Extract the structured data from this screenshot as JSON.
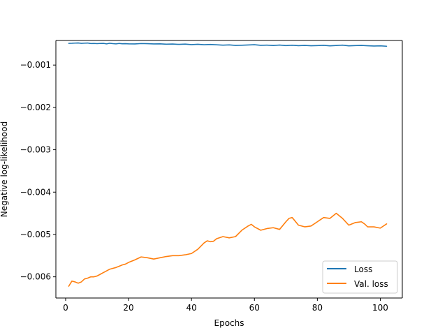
{
  "chart_data": {
    "type": "line",
    "title": "",
    "xlabel": "Epochs",
    "ylabel": "Negative log-likelihood",
    "xlim": [
      -3.1,
      107
    ],
    "ylim": [
      -0.0065,
      -0.00042
    ],
    "xticks": [
      0,
      20,
      40,
      60,
      80,
      100
    ],
    "xtick_labels": [
      "0",
      "20",
      "40",
      "60",
      "80",
      "100"
    ],
    "yticks": [
      -0.006,
      -0.005,
      -0.004,
      -0.003,
      -0.002,
      -0.001
    ],
    "ytick_labels": [
      "−0.006",
      "−0.005",
      "−0.004",
      "−0.003",
      "−0.002",
      "−0.001"
    ],
    "grid": false,
    "legend": {
      "location": "lower-right",
      "entries": [
        "Loss",
        "Val. loss"
      ]
    },
    "series": [
      {
        "name": "Loss",
        "color": "#1f77b4",
        "x": [
          1,
          2,
          3,
          4,
          5,
          6,
          7,
          8,
          9,
          10,
          11,
          12,
          13,
          14,
          15,
          16,
          17,
          18,
          19,
          20,
          22,
          24,
          26,
          28,
          30,
          32,
          34,
          36,
          38,
          40,
          42,
          44,
          46,
          48,
          50,
          52,
          54,
          56,
          58,
          60,
          62,
          64,
          66,
          68,
          70,
          72,
          74,
          76,
          78,
          80,
          82,
          84,
          86,
          88,
          90,
          92,
          94,
          96,
          98,
          100,
          102
        ],
        "y": [
          -0.000488,
          -0.000486,
          -0.000482,
          -0.000478,
          -0.000488,
          -0.000484,
          -0.00048,
          -0.000492,
          -0.00049,
          -0.000494,
          -0.00049,
          -0.000488,
          -0.0005,
          -0.000486,
          -0.000494,
          -0.0005,
          -0.00049,
          -0.000498,
          -0.000496,
          -0.0005,
          -0.000502,
          -0.000492,
          -0.000496,
          -0.000502,
          -0.0005,
          -0.000508,
          -0.000504,
          -0.000512,
          -0.000506,
          -0.000518,
          -0.00051,
          -0.00052,
          -0.000514,
          -0.000522,
          -0.00053,
          -0.000524,
          -0.000536,
          -0.000532,
          -0.000526,
          -0.00052,
          -0.000534,
          -0.00053,
          -0.000538,
          -0.000528,
          -0.00054,
          -0.000532,
          -0.000542,
          -0.000536,
          -0.000544,
          -0.00054,
          -0.000534,
          -0.000546,
          -0.000538,
          -0.00053,
          -0.000546,
          -0.00054,
          -0.000536,
          -0.000544,
          -0.00055,
          -0.000546,
          -0.000556
        ]
      },
      {
        "name": "Val. loss",
        "color": "#ff7f0e",
        "x": [
          1,
          2,
          3,
          4,
          5,
          6,
          7,
          8,
          9,
          10,
          11,
          12,
          13,
          14,
          15,
          16,
          17,
          18,
          19,
          20,
          22,
          24,
          26,
          28,
          30,
          32,
          34,
          36,
          38,
          40,
          42,
          44,
          45,
          46,
          47,
          48,
          50,
          52,
          54,
          56,
          58,
          59,
          60,
          62,
          64,
          66,
          68,
          70,
          71,
          72,
          74,
          76,
          78,
          80,
          81,
          82,
          84,
          86,
          88,
          90,
          92,
          94,
          95,
          96,
          98,
          100,
          102
        ],
        "y": [
          -0.00622,
          -0.0061,
          -0.00612,
          -0.00615,
          -0.00612,
          -0.00605,
          -0.00603,
          -0.006,
          -0.006,
          -0.00598,
          -0.00594,
          -0.0059,
          -0.00586,
          -0.00582,
          -0.0058,
          -0.00578,
          -0.00575,
          -0.00572,
          -0.0057,
          -0.00566,
          -0.0056,
          -0.00553,
          -0.00555,
          -0.00558,
          -0.00555,
          -0.00552,
          -0.0055,
          -0.0055,
          -0.00548,
          -0.00545,
          -0.00535,
          -0.0052,
          -0.00515,
          -0.00517,
          -0.00516,
          -0.0051,
          -0.00505,
          -0.00508,
          -0.00505,
          -0.0049,
          -0.0048,
          -0.00476,
          -0.00482,
          -0.0049,
          -0.00486,
          -0.00484,
          -0.00488,
          -0.0047,
          -0.00462,
          -0.0046,
          -0.00478,
          -0.00482,
          -0.0048,
          -0.0047,
          -0.00465,
          -0.0046,
          -0.00462,
          -0.0045,
          -0.00462,
          -0.00478,
          -0.00472,
          -0.0047,
          -0.00475,
          -0.00482,
          -0.00482,
          -0.00485,
          -0.00475
        ]
      }
    ]
  }
}
